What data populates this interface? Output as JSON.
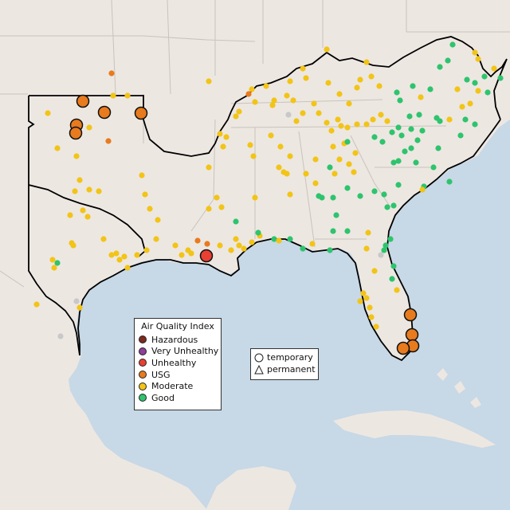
{
  "legend": {
    "aqi_title": "Air Quality Index",
    "aqi_items": [
      {
        "label": "Hazardous",
        "color": "#7e2a1e"
      },
      {
        "label": "Very Unhealthy",
        "color": "#8f3f97"
      },
      {
        "label": "Unhealthy",
        "color": "#e84033"
      },
      {
        "label": "USG",
        "color": "#e87b1e"
      },
      {
        "label": "Moderate",
        "color": "#f2c416"
      },
      {
        "label": "Good",
        "color": "#2ec46d"
      }
    ],
    "type_items": [
      {
        "label": "temporary",
        "icon": "circle-icon"
      },
      {
        "label": "permanent",
        "icon": "triangle-icon"
      }
    ]
  },
  "colors": {
    "land": "#ede7e2",
    "water": "#c7d8e6",
    "border": "#000000",
    "state_line": "#c9c3be"
  }
}
